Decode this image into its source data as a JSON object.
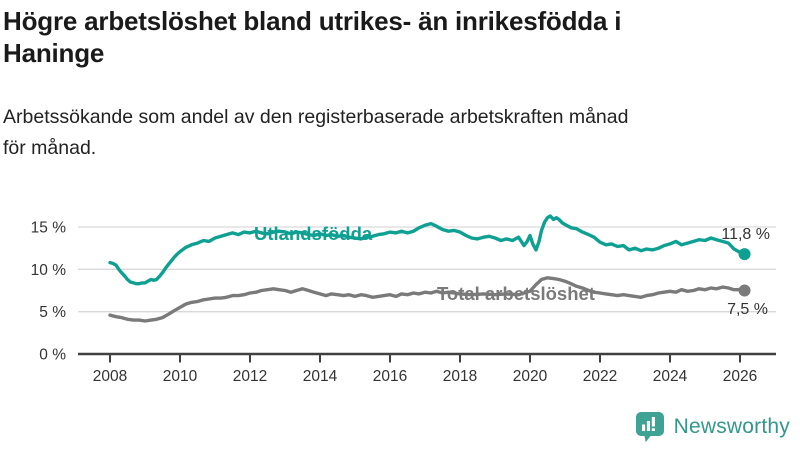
{
  "header": {
    "title_lines": [
      "Högre arbetslöshet bland utrikes- än inrikesfödda i",
      "Haninge"
    ],
    "subtitle_lines": [
      "Arbetssökande som andel av den registerbaserade arbetskraften månad",
      "för månad."
    ]
  },
  "chart_data": {
    "type": "line",
    "title": "Högre arbetslöshet bland utrikes- än inrikesfödda i Haninge",
    "subtitle": "Arbetssökande som andel av den registerbaserade arbetskraften månad för månad.",
    "xlabel": "",
    "ylabel": "",
    "unit": "%",
    "grid": "horizontal",
    "xlim": [
      2007.9,
      2027
    ],
    "ylim": [
      0,
      17
    ],
    "y_ticks": [
      {
        "value": 0,
        "label": "0 %"
      },
      {
        "value": 5,
        "label": "5 %"
      },
      {
        "value": 10,
        "label": "10 %"
      },
      {
        "value": 15,
        "label": "15 %"
      }
    ],
    "x_ticks": [
      {
        "year": 2008,
        "label": "2008"
      },
      {
        "year": 2010,
        "label": "2010"
      },
      {
        "year": 2012,
        "label": "2012"
      },
      {
        "year": 2014,
        "label": "2014"
      },
      {
        "year": 2016,
        "label": "2016"
      },
      {
        "year": 2018,
        "label": "2018"
      },
      {
        "year": 2020,
        "label": "2020"
      },
      {
        "year": 2022,
        "label": "2022"
      },
      {
        "year": 2024,
        "label": "2024"
      },
      {
        "year": 2026,
        "label": "2026"
      }
    ],
    "series": [
      {
        "name": "Utlandsfödda",
        "color": "#0ea092",
        "end_label": "11,8 %",
        "end_value": 11.8,
        "points": [
          [
            2008.0,
            10.8
          ],
          [
            2008.08,
            10.7
          ],
          [
            2008.17,
            10.5
          ],
          [
            2008.25,
            10.0
          ],
          [
            2008.33,
            9.6
          ],
          [
            2008.42,
            9.2
          ],
          [
            2008.5,
            8.8
          ],
          [
            2008.58,
            8.5
          ],
          [
            2008.67,
            8.4
          ],
          [
            2008.75,
            8.3
          ],
          [
            2008.83,
            8.3
          ],
          [
            2008.92,
            8.4
          ],
          [
            2009.0,
            8.4
          ],
          [
            2009.08,
            8.6
          ],
          [
            2009.17,
            8.8
          ],
          [
            2009.25,
            8.7
          ],
          [
            2009.33,
            8.8
          ],
          [
            2009.42,
            9.2
          ],
          [
            2009.5,
            9.6
          ],
          [
            2009.58,
            10.1
          ],
          [
            2009.67,
            10.6
          ],
          [
            2009.75,
            11.0
          ],
          [
            2009.83,
            11.4
          ],
          [
            2009.92,
            11.8
          ],
          [
            2010.0,
            12.1
          ],
          [
            2010.17,
            12.6
          ],
          [
            2010.33,
            12.9
          ],
          [
            2010.5,
            13.1
          ],
          [
            2010.67,
            13.4
          ],
          [
            2010.83,
            13.3
          ],
          [
            2011.0,
            13.7
          ],
          [
            2011.17,
            13.9
          ],
          [
            2011.33,
            14.1
          ],
          [
            2011.5,
            14.3
          ],
          [
            2011.67,
            14.1
          ],
          [
            2011.83,
            14.4
          ],
          [
            2012.0,
            14.3
          ],
          [
            2012.17,
            14.5
          ],
          [
            2012.33,
            14.3
          ],
          [
            2012.5,
            14.2
          ],
          [
            2012.67,
            14.4
          ],
          [
            2012.83,
            14.5
          ],
          [
            2013.0,
            14.4
          ],
          [
            2013.17,
            14.2
          ],
          [
            2013.33,
            14.4
          ],
          [
            2013.5,
            14.3
          ],
          [
            2013.67,
            14.1
          ],
          [
            2013.83,
            14.0
          ],
          [
            2014.0,
            14.2
          ],
          [
            2014.17,
            14.0
          ],
          [
            2014.33,
            14.1
          ],
          [
            2014.5,
            13.9
          ],
          [
            2014.67,
            14.0
          ],
          [
            2014.83,
            13.8
          ],
          [
            2015.0,
            13.7
          ],
          [
            2015.17,
            13.6
          ],
          [
            2015.33,
            13.8
          ],
          [
            2015.5,
            13.9
          ],
          [
            2015.67,
            14.1
          ],
          [
            2015.83,
            14.2
          ],
          [
            2016.0,
            14.4
          ],
          [
            2016.17,
            14.3
          ],
          [
            2016.33,
            14.5
          ],
          [
            2016.5,
            14.3
          ],
          [
            2016.67,
            14.5
          ],
          [
            2016.83,
            14.9
          ],
          [
            2017.0,
            15.2
          ],
          [
            2017.17,
            15.4
          ],
          [
            2017.33,
            15.1
          ],
          [
            2017.5,
            14.7
          ],
          [
            2017.67,
            14.5
          ],
          [
            2017.83,
            14.6
          ],
          [
            2018.0,
            14.4
          ],
          [
            2018.17,
            14.0
          ],
          [
            2018.33,
            13.7
          ],
          [
            2018.5,
            13.6
          ],
          [
            2018.67,
            13.8
          ],
          [
            2018.83,
            13.9
          ],
          [
            2019.0,
            13.7
          ],
          [
            2019.17,
            13.4
          ],
          [
            2019.33,
            13.6
          ],
          [
            2019.5,
            13.4
          ],
          [
            2019.67,
            13.8
          ],
          [
            2019.83,
            12.8
          ],
          [
            2019.92,
            13.3
          ],
          [
            2020.0,
            14.0
          ],
          [
            2020.08,
            13.0
          ],
          [
            2020.17,
            12.3
          ],
          [
            2020.25,
            13.2
          ],
          [
            2020.33,
            14.6
          ],
          [
            2020.42,
            15.6
          ],
          [
            2020.5,
            16.1
          ],
          [
            2020.58,
            16.3
          ],
          [
            2020.67,
            15.9
          ],
          [
            2020.75,
            16.1
          ],
          [
            2020.83,
            15.9
          ],
          [
            2020.92,
            15.5
          ],
          [
            2021.0,
            15.3
          ],
          [
            2021.17,
            14.9
          ],
          [
            2021.33,
            14.8
          ],
          [
            2021.5,
            14.4
          ],
          [
            2021.67,
            14.1
          ],
          [
            2021.83,
            13.8
          ],
          [
            2022.0,
            13.2
          ],
          [
            2022.17,
            12.9
          ],
          [
            2022.33,
            13.0
          ],
          [
            2022.5,
            12.7
          ],
          [
            2022.67,
            12.8
          ],
          [
            2022.83,
            12.3
          ],
          [
            2023.0,
            12.5
          ],
          [
            2023.17,
            12.2
          ],
          [
            2023.33,
            12.4
          ],
          [
            2023.5,
            12.3
          ],
          [
            2023.67,
            12.5
          ],
          [
            2023.83,
            12.8
          ],
          [
            2024.0,
            13.0
          ],
          [
            2024.17,
            13.3
          ],
          [
            2024.33,
            12.9
          ],
          [
            2024.5,
            13.1
          ],
          [
            2024.67,
            13.3
          ],
          [
            2024.83,
            13.5
          ],
          [
            2025.0,
            13.4
          ],
          [
            2025.17,
            13.7
          ],
          [
            2025.33,
            13.5
          ],
          [
            2025.5,
            13.3
          ],
          [
            2025.67,
            13.1
          ],
          [
            2025.83,
            12.4
          ],
          [
            2026.0,
            12.0
          ],
          [
            2026.13,
            11.8
          ]
        ]
      },
      {
        "name": "Total arbetslöshet",
        "color": "#7a7a7a",
        "end_label": "7,5 %",
        "end_value": 7.5,
        "points": [
          [
            2008.0,
            4.6
          ],
          [
            2008.17,
            4.4
          ],
          [
            2008.33,
            4.3
          ],
          [
            2008.5,
            4.1
          ],
          [
            2008.67,
            4.0
          ],
          [
            2008.83,
            4.0
          ],
          [
            2009.0,
            3.9
          ],
          [
            2009.17,
            4.0
          ],
          [
            2009.33,
            4.1
          ],
          [
            2009.5,
            4.3
          ],
          [
            2009.67,
            4.7
          ],
          [
            2009.83,
            5.1
          ],
          [
            2010.0,
            5.5
          ],
          [
            2010.17,
            5.9
          ],
          [
            2010.33,
            6.1
          ],
          [
            2010.5,
            6.2
          ],
          [
            2010.67,
            6.4
          ],
          [
            2010.83,
            6.5
          ],
          [
            2011.0,
            6.6
          ],
          [
            2011.17,
            6.6
          ],
          [
            2011.33,
            6.7
          ],
          [
            2011.5,
            6.9
          ],
          [
            2011.67,
            6.9
          ],
          [
            2011.83,
            7.0
          ],
          [
            2012.0,
            7.2
          ],
          [
            2012.17,
            7.3
          ],
          [
            2012.33,
            7.5
          ],
          [
            2012.5,
            7.6
          ],
          [
            2012.67,
            7.7
          ],
          [
            2012.83,
            7.6
          ],
          [
            2013.0,
            7.5
          ],
          [
            2013.17,
            7.3
          ],
          [
            2013.33,
            7.5
          ],
          [
            2013.5,
            7.7
          ],
          [
            2013.67,
            7.5
          ],
          [
            2013.83,
            7.3
          ],
          [
            2014.0,
            7.1
          ],
          [
            2014.17,
            6.9
          ],
          [
            2014.33,
            7.1
          ],
          [
            2014.5,
            7.0
          ],
          [
            2014.67,
            6.9
          ],
          [
            2014.83,
            7.0
          ],
          [
            2015.0,
            6.8
          ],
          [
            2015.17,
            7.0
          ],
          [
            2015.33,
            6.9
          ],
          [
            2015.5,
            6.7
          ],
          [
            2015.67,
            6.8
          ],
          [
            2015.83,
            6.9
          ],
          [
            2016.0,
            7.0
          ],
          [
            2016.17,
            6.8
          ],
          [
            2016.33,
            7.1
          ],
          [
            2016.5,
            7.0
          ],
          [
            2016.67,
            7.2
          ],
          [
            2016.83,
            7.1
          ],
          [
            2017.0,
            7.3
          ],
          [
            2017.17,
            7.2
          ],
          [
            2017.33,
            7.4
          ],
          [
            2017.5,
            7.2
          ],
          [
            2017.67,
            7.3
          ],
          [
            2017.83,
            7.2
          ],
          [
            2018.0,
            7.1
          ],
          [
            2018.33,
            7.0
          ],
          [
            2018.67,
            7.1
          ],
          [
            2019.0,
            7.0
          ],
          [
            2019.33,
            7.1
          ],
          [
            2019.67,
            7.0
          ],
          [
            2019.83,
            7.2
          ],
          [
            2020.0,
            7.4
          ],
          [
            2020.17,
            8.2
          ],
          [
            2020.33,
            8.8
          ],
          [
            2020.5,
            9.0
          ],
          [
            2020.67,
            8.9
          ],
          [
            2020.83,
            8.8
          ],
          [
            2021.0,
            8.6
          ],
          [
            2021.17,
            8.3
          ],
          [
            2021.33,
            8.0
          ],
          [
            2021.5,
            7.8
          ],
          [
            2021.67,
            7.5
          ],
          [
            2021.83,
            7.3
          ],
          [
            2022.0,
            7.2
          ],
          [
            2022.17,
            7.1
          ],
          [
            2022.33,
            7.0
          ],
          [
            2022.5,
            6.9
          ],
          [
            2022.67,
            7.0
          ],
          [
            2022.83,
            6.9
          ],
          [
            2023.0,
            6.8
          ],
          [
            2023.17,
            6.7
          ],
          [
            2023.33,
            6.9
          ],
          [
            2023.5,
            7.0
          ],
          [
            2023.67,
            7.2
          ],
          [
            2023.83,
            7.3
          ],
          [
            2024.0,
            7.4
          ],
          [
            2024.17,
            7.3
          ],
          [
            2024.33,
            7.6
          ],
          [
            2024.5,
            7.4
          ],
          [
            2024.67,
            7.5
          ],
          [
            2024.83,
            7.7
          ],
          [
            2025.0,
            7.6
          ],
          [
            2025.17,
            7.8
          ],
          [
            2025.33,
            7.7
          ],
          [
            2025.5,
            7.9
          ],
          [
            2025.67,
            7.8
          ],
          [
            2025.83,
            7.6
          ],
          [
            2026.0,
            7.6
          ],
          [
            2026.13,
            7.5
          ]
        ]
      }
    ],
    "colors": {
      "gridline": "#d9d9d9",
      "axis": "#404040",
      "tick_text": "#333333"
    }
  },
  "logo": {
    "name": "Newsworthy",
    "icon": "bar-chart-speech-bubble-icon",
    "bubble_color": "#3ea294",
    "text_color": "#33978b"
  }
}
